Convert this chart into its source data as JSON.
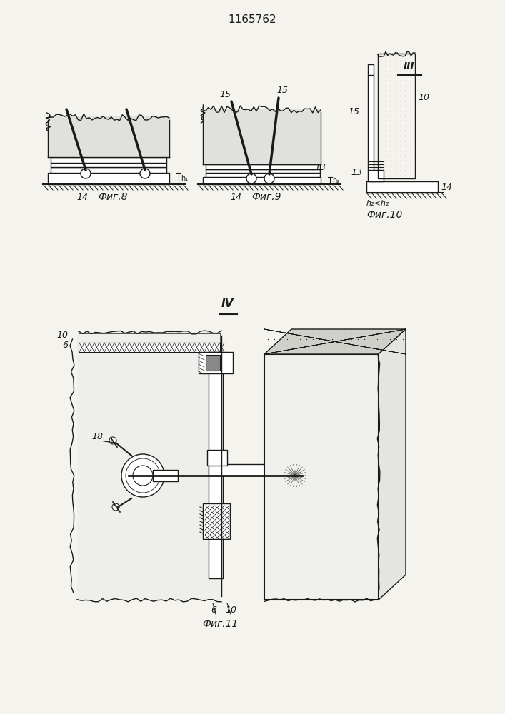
{
  "title": "1165762",
  "bg_color": "#f4f3ee",
  "lc": "#1a1a1a",
  "fig8_label": "Фиг.8",
  "fig9_label": "Фиг.9",
  "fig10_label": "Фиг.10",
  "fig11_label": "Фиг.11",
  "label_14_fig8": "14",
  "label_14_fig9": "14",
  "label_15a": "15",
  "label_15b": "15",
  "label_13": "13",
  "label_10": "10",
  "label_6": "6",
  "label_18": "18",
  "label_h1": "h₁",
  "label_h2": "h₂",
  "note_h2": "h₂<h₂",
  "roman_III": "III",
  "roman_IV": "IV"
}
